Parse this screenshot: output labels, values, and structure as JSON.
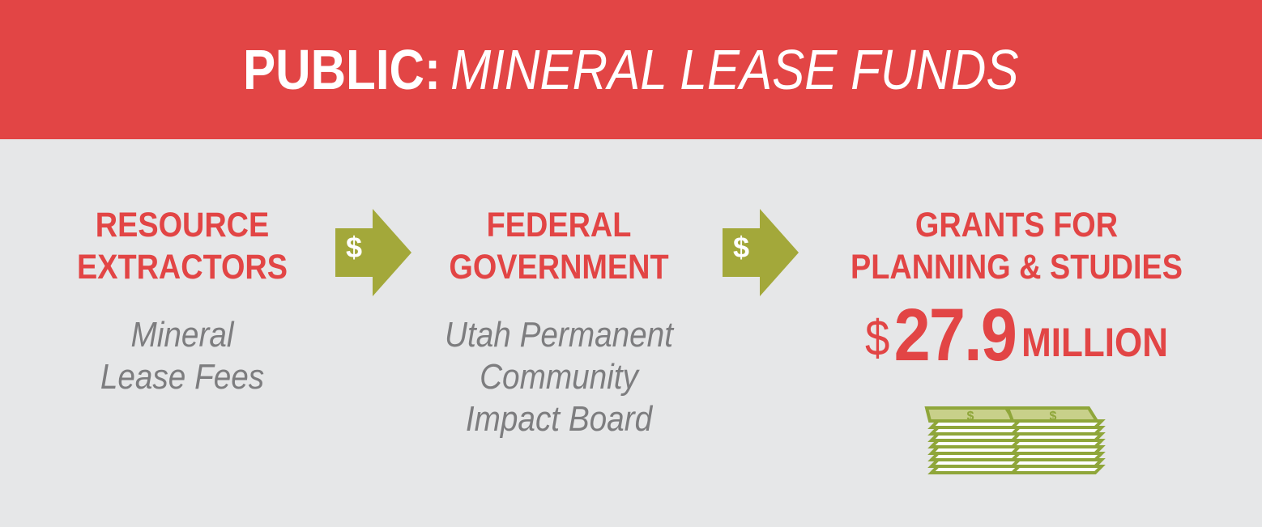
{
  "header": {
    "title_prefix": "PUBLIC:",
    "title_emphasis": "MINERAL LEASE FUNDS"
  },
  "flow": {
    "step1": {
      "title_line1": "RESOURCE",
      "title_line2": "EXTRACTORS",
      "sub_line1": "Mineral",
      "sub_line2": "Lease Fees"
    },
    "arrow1": {
      "symbol": "$"
    },
    "step2": {
      "title_line1": "FEDERAL",
      "title_line2": "GOVERNMENT",
      "sub_line1": "Utah Permanent",
      "sub_line2": "Community",
      "sub_line3": "Impact Board"
    },
    "arrow2": {
      "symbol": "$"
    },
    "step3": {
      "title_line1": "GRANTS FOR",
      "title_line2": "PLANNING & STUDIES",
      "amount_currency": "$",
      "amount_value": "27.9",
      "amount_unit": "MILLION"
    }
  },
  "colors": {
    "header_bg": "#e24545",
    "accent_red": "#e24545",
    "arrow_olive": "#a3a83a",
    "money_green": "#8fa63a",
    "sub_text_gray": "#7d7d7f",
    "background": "#e6e7e8"
  },
  "icons": {
    "arrow": "dollar-arrow-icon",
    "money": "money-stack-icon"
  }
}
